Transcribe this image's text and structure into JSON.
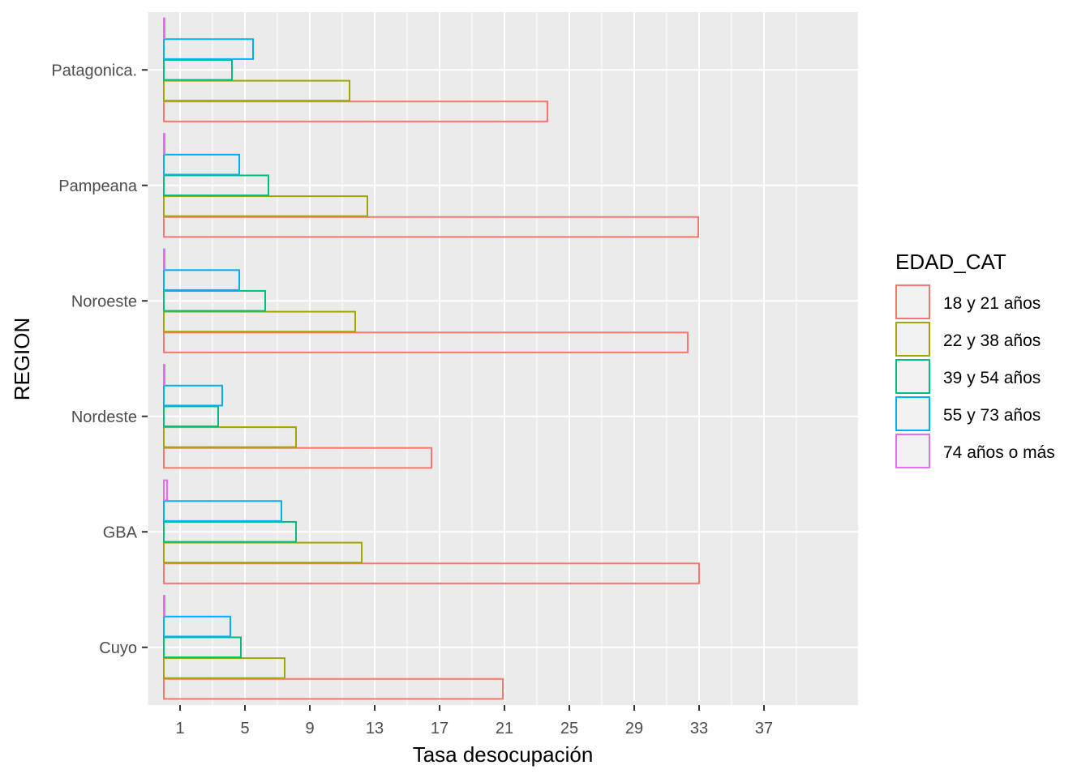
{
  "chart_data": {
    "type": "bar",
    "orientation": "horizontal",
    "xlabel": "Tasa desocupación",
    "ylabel": "REGION",
    "xlim": [
      -1,
      42.8
    ],
    "x_ticks": [
      1,
      5,
      9,
      13,
      17,
      21,
      25,
      29,
      33,
      37
    ],
    "categories": [
      "Cuyo",
      "GBA",
      "Nordeste",
      "Noroeste",
      "Pampeana",
      "Patagonica."
    ],
    "legend": {
      "title": "EDAD_CAT",
      "position": "right"
    },
    "grid": true,
    "series": [
      {
        "name": "18 y 21 años",
        "color": "#F8766D",
        "values": [
          20.9,
          33.0,
          16.5,
          32.3,
          32.95,
          23.65
        ]
      },
      {
        "name": "22 y 38 años",
        "color": "#A3A500",
        "values": [
          7.45,
          12.2,
          8.15,
          11.8,
          12.55,
          11.45
        ]
      },
      {
        "name": "39 y 54 años",
        "color": "#00BF7D",
        "values": [
          4.75,
          8.15,
          3.35,
          6.25,
          6.45,
          4.2
        ]
      },
      {
        "name": "55 y 73 años",
        "color": "#00B0F6",
        "values": [
          4.1,
          7.25,
          3.6,
          4.65,
          4.65,
          5.5
        ]
      },
      {
        "name": "74 años o más",
        "color": "#E76BF3",
        "values": [
          0.05,
          0.2,
          0.05,
          0.05,
          0.05,
          0.05
        ]
      }
    ]
  }
}
